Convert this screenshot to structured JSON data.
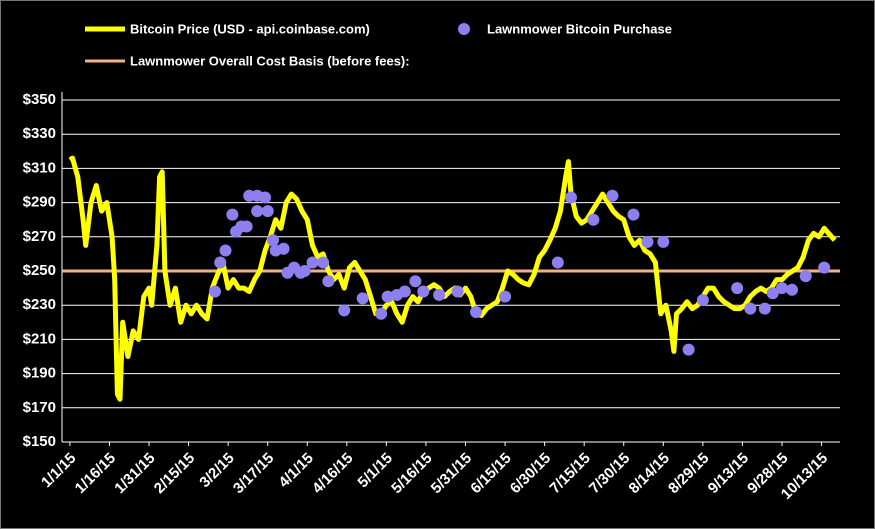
{
  "chart_data": {
    "type": "line",
    "series": [
      {
        "name": "Bitcoin Price (USD - api.coinbase.com)",
        "color": "#ffff00",
        "style": "line",
        "x": [
          0,
          1,
          3,
          5,
          6,
          8,
          10,
          12,
          14,
          16,
          17,
          18,
          19,
          20,
          22,
          24,
          26,
          28,
          30,
          31,
          33,
          34,
          35,
          36,
          38,
          40,
          42,
          44,
          46,
          48,
          50,
          52,
          54,
          56,
          58,
          60,
          62,
          64,
          66,
          68,
          70,
          72,
          74,
          76,
          78,
          80,
          82,
          84,
          86,
          88,
          90,
          92,
          94,
          96,
          98,
          100,
          102,
          104,
          106,
          108,
          110,
          112,
          114,
          116,
          118,
          120,
          122,
          124,
          126,
          128,
          130,
          132,
          134,
          136,
          138,
          140,
          142,
          144,
          146,
          148,
          150,
          152,
          154,
          156,
          158,
          160,
          162,
          164,
          166,
          168,
          170,
          172,
          174,
          176,
          178,
          180,
          182,
          184,
          186,
          188,
          189,
          190,
          192,
          194,
          196,
          198,
          200,
          202,
          204,
          206,
          208,
          210,
          212,
          214,
          216,
          218,
          220,
          222,
          224,
          226,
          228,
          229,
          230,
          232,
          234,
          236,
          238,
          240,
          242,
          244,
          246,
          248,
          250,
          252,
          254,
          256,
          258,
          260,
          262,
          264,
          266,
          268,
          270,
          272,
          274,
          276,
          278,
          280,
          282,
          284,
          286,
          290
        ],
        "values": [
          315,
          316,
          305,
          280,
          265,
          290,
          300,
          285,
          290,
          270,
          245,
          178,
          175,
          220,
          200,
          215,
          210,
          235,
          240,
          230,
          265,
          305,
          308,
          250,
          230,
          240,
          220,
          230,
          225,
          230,
          225,
          222,
          240,
          248,
          255,
          240,
          245,
          240,
          240,
          238,
          245,
          250,
          262,
          270,
          280,
          275,
          290,
          295,
          292,
          285,
          280,
          265,
          258,
          260,
          250,
          245,
          248,
          240,
          252,
          255,
          250,
          245,
          235,
          225,
          225,
          230,
          232,
          225,
          220,
          230,
          235,
          232,
          238,
          240,
          242,
          240,
          235,
          238,
          240,
          236,
          240,
          235,
          225,
          224,
          228,
          230,
          232,
          240,
          250,
          248,
          245,
          243,
          242,
          248,
          258,
          262,
          268,
          275,
          285,
          305,
          314,
          295,
          282,
          278,
          280,
          285,
          290,
          295,
          290,
          285,
          282,
          280,
          270,
          265,
          268,
          262,
          260,
          255,
          225,
          230,
          215,
          203,
          225,
          228,
          232,
          228,
          230,
          235,
          240,
          240,
          235,
          232,
          230,
          228,
          228,
          230,
          235,
          238,
          240,
          238,
          240,
          245,
          245,
          248,
          250,
          252,
          258,
          268,
          272,
          270,
          275,
          268
        ]
      },
      {
        "name": "Lawnmower Bitcoin Purchase",
        "color": "#8e7ff0",
        "style": "marker",
        "x": [
          55,
          57,
          59,
          61.6,
          63,
          65,
          67,
          68,
          71,
          71,
          74,
          75,
          77,
          78,
          81,
          82.5,
          85,
          87.5,
          89,
          92,
          96,
          98,
          104,
          111,
          118,
          120.5,
          124,
          127,
          131,
          134,
          140,
          147,
          154,
          165,
          185,
          190,
          198.5,
          205.7,
          213.7,
          219,
          225,
          234.6,
          240,
          253,
          258,
          263.5,
          266.5,
          270,
          273.8,
          279,
          286
        ],
        "values": [
          238,
          255,
          262,
          283,
          273,
          276,
          276,
          294,
          294,
          285,
          293,
          285,
          268,
          262,
          263,
          249,
          252,
          249,
          250,
          255,
          255,
          244,
          227,
          234,
          225,
          235,
          236,
          238,
          244,
          238,
          236,
          238,
          226,
          235,
          255,
          293,
          280,
          294,
          283,
          267,
          267,
          204,
          233,
          240,
          228,
          228,
          237,
          240,
          239,
          247,
          252
        ]
      }
    ],
    "cost_basis": {
      "name": "Lawnmower Overall Cost Basis (before fees):",
      "value": 250,
      "color": "#f4b183"
    },
    "xlim": [
      -3,
      292
    ],
    "xticks": [
      {
        "value": 0,
        "label": "1/1/15"
      },
      {
        "value": 15,
        "label": "1/16/15"
      },
      {
        "value": 30,
        "label": "1/31/15"
      },
      {
        "value": 45,
        "label": "2/15/15"
      },
      {
        "value": 60,
        "label": "3/2/15"
      },
      {
        "value": 75,
        "label": "3/17/15"
      },
      {
        "value": 90,
        "label": "4/1/15"
      },
      {
        "value": 105,
        "label": "4/16/15"
      },
      {
        "value": 120,
        "label": "5/1/15"
      },
      {
        "value": 135,
        "label": "5/16/15"
      },
      {
        "value": 150,
        "label": "5/31/15"
      },
      {
        "value": 165,
        "label": "6/15/15"
      },
      {
        "value": 180,
        "label": "6/30/15"
      },
      {
        "value": 195,
        "label": "7/15/15"
      },
      {
        "value": 210,
        "label": "7/30/15"
      },
      {
        "value": 225,
        "label": "8/14/15"
      },
      {
        "value": 240,
        "label": "8/29/15"
      },
      {
        "value": 255,
        "label": "9/13/15"
      },
      {
        "value": 270,
        "label": "9/28/15"
      },
      {
        "value": 285,
        "label": "10/13/15"
      }
    ],
    "ylim": [
      150,
      350
    ],
    "yticks": [
      {
        "value": 150,
        "label": "$150"
      },
      {
        "value": 170,
        "label": "$170"
      },
      {
        "value": 190,
        "label": "$190"
      },
      {
        "value": 210,
        "label": "$210"
      },
      {
        "value": 230,
        "label": "$230"
      },
      {
        "value": 250,
        "label": "$250"
      },
      {
        "value": 270,
        "label": "$270"
      },
      {
        "value": 290,
        "label": "$290"
      },
      {
        "value": 310,
        "label": "$310"
      },
      {
        "value": 330,
        "label": "$330"
      },
      {
        "value": 350,
        "label": "$350"
      }
    ],
    "grid": true
  }
}
